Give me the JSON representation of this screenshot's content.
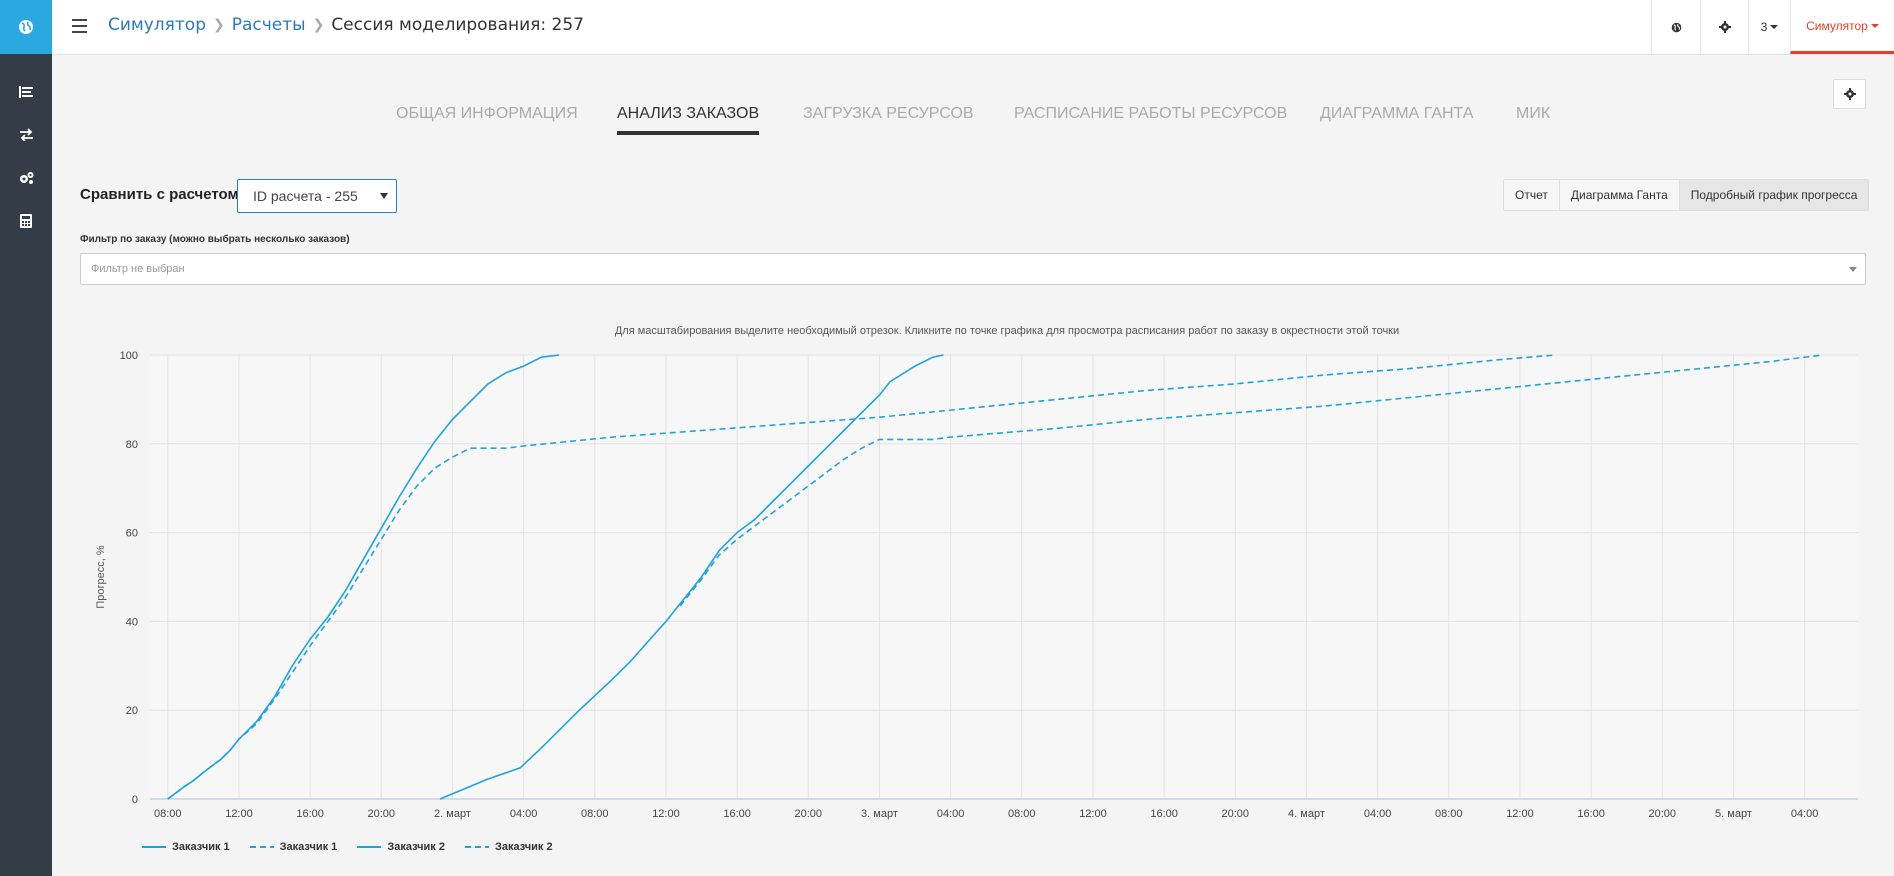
{
  "header": {
    "breadcrumb": [
      "Симулятор",
      "Расчеты"
    ],
    "current_page": "Сессия моделирования: 257",
    "count": "3",
    "user_menu": "Симулятор"
  },
  "colors": {
    "accent": "#2aa8e0",
    "sidebar": "#343d47",
    "danger": "#e0412a",
    "series": "#1fa3de"
  },
  "sidebar": {
    "icons": [
      "globe-icon",
      "list-icon",
      "exchange-icon",
      "gears-icon",
      "calculator-icon"
    ]
  },
  "tabs": [
    "ОБЩАЯ ИНФОРМАЦИЯ",
    "АНАЛИЗ ЗАКАЗОВ",
    "ЗАГРУЗКА РЕСУРСОВ",
    "РАСПИСАНИЕ РАБОТЫ РЕСУРСОВ",
    "ДИАГРАММА ГАНТА",
    "МИК"
  ],
  "active_tab": "АНАЛИЗ ЗАКАЗОВ",
  "compare": {
    "label": "Сравнить с расчетом:",
    "selected": "ID расчета - 255"
  },
  "view_buttons": [
    "Отчет",
    "Диаграмма Ганта",
    "Подробный график прогресса"
  ],
  "filter": {
    "label": "Фильтр по заказу (можно выбрать несколько заказов)",
    "placeholder": "Фильтр не выбран"
  },
  "chart_hint": "Для масштабирования выделите необходимый отрезок. Кликните по точке графика для просмотра расписания работ по заказу в окрестности этой точки",
  "chart_data": {
    "type": "line",
    "ylabel": "Прогресс, %",
    "ylim": [
      0,
      100
    ],
    "yticks": [
      0,
      20,
      40,
      60,
      80,
      100
    ],
    "x_unit": "hours from 1 March 08:00",
    "xlim": [
      -1,
      95
    ],
    "xticks": [
      {
        "x": 0,
        "label": "08:00"
      },
      {
        "x": 4,
        "label": "12:00"
      },
      {
        "x": 8,
        "label": "16:00"
      },
      {
        "x": 12,
        "label": "20:00"
      },
      {
        "x": 16,
        "label": "2. март"
      },
      {
        "x": 20,
        "label": "04:00"
      },
      {
        "x": 24,
        "label": "08:00"
      },
      {
        "x": 28,
        "label": "12:00"
      },
      {
        "x": 32,
        "label": "16:00"
      },
      {
        "x": 36,
        "label": "20:00"
      },
      {
        "x": 40,
        "label": "3. март"
      },
      {
        "x": 44,
        "label": "04:00"
      },
      {
        "x": 48,
        "label": "08:00"
      },
      {
        "x": 52,
        "label": "12:00"
      },
      {
        "x": 56,
        "label": "16:00"
      },
      {
        "x": 60,
        "label": "20:00"
      },
      {
        "x": 64,
        "label": "4. март"
      },
      {
        "x": 68,
        "label": "04:00"
      },
      {
        "x": 72,
        "label": "08:00"
      },
      {
        "x": 76,
        "label": "12:00"
      },
      {
        "x": 80,
        "label": "16:00"
      },
      {
        "x": 84,
        "label": "20:00"
      },
      {
        "x": 88,
        "label": "5. март"
      },
      {
        "x": 92,
        "label": "04:00"
      }
    ],
    "grid": true,
    "legend_position": "bottom-left",
    "series": [
      {
        "name": "Заказчик 1",
        "dash": false,
        "points": [
          [
            0,
            0
          ],
          [
            1,
            3
          ],
          [
            1.4,
            4
          ],
          [
            2,
            6
          ],
          [
            3,
            9
          ],
          [
            3.5,
            11
          ],
          [
            4,
            13.5
          ],
          [
            5,
            17.5
          ],
          [
            6,
            23
          ],
          [
            7,
            30
          ],
          [
            8,
            36
          ],
          [
            9,
            41
          ],
          [
            10,
            47
          ],
          [
            11,
            54
          ],
          [
            12,
            61
          ],
          [
            13,
            68
          ],
          [
            14,
            74.5
          ],
          [
            15,
            80.5
          ],
          [
            16,
            85.5
          ],
          [
            17,
            89.5
          ],
          [
            18,
            93.5
          ],
          [
            19,
            96
          ],
          [
            20,
            97.5
          ],
          [
            21,
            99.5
          ],
          [
            22,
            100
          ]
        ]
      },
      {
        "name": "Заказчик 1",
        "dash": true,
        "points": [
          [
            0,
            0
          ],
          [
            1,
            3
          ],
          [
            1.4,
            4
          ],
          [
            2,
            6
          ],
          [
            3,
            9
          ],
          [
            3.5,
            11
          ],
          [
            4,
            13.5
          ],
          [
            5,
            17
          ],
          [
            6,
            22.5
          ],
          [
            7,
            28.5
          ],
          [
            8,
            34.5
          ],
          [
            9,
            40
          ],
          [
            10,
            45.5
          ],
          [
            11,
            52
          ],
          [
            12,
            58.5
          ],
          [
            13,
            65
          ],
          [
            14,
            70.5
          ],
          [
            15,
            74.5
          ],
          [
            16,
            77
          ],
          [
            17,
            79
          ],
          [
            18,
            79
          ],
          [
            19,
            79
          ],
          [
            20,
            79.5
          ],
          [
            25,
            81.5
          ],
          [
            30,
            83
          ],
          [
            35,
            84.5
          ],
          [
            40,
            86
          ],
          [
            45,
            88
          ],
          [
            50,
            90
          ],
          [
            55,
            92
          ],
          [
            60,
            93.5
          ],
          [
            65,
            95.5
          ],
          [
            70,
            97
          ],
          [
            75,
            99
          ],
          [
            78,
            100
          ]
        ]
      },
      {
        "name": "Заказчик 2",
        "dash": false,
        "points": [
          [
            15.3,
            0
          ],
          [
            16.5,
            2
          ],
          [
            18,
            4.5
          ],
          [
            19.8,
            7
          ],
          [
            21,
            11.5
          ],
          [
            23,
            19.5
          ],
          [
            25,
            27
          ],
          [
            26,
            31
          ],
          [
            27,
            35.5
          ],
          [
            28,
            40
          ],
          [
            28.8,
            44
          ],
          [
            29,
            45
          ],
          [
            30,
            50
          ],
          [
            31,
            56
          ],
          [
            32,
            60
          ],
          [
            33,
            63
          ],
          [
            34,
            67
          ],
          [
            35,
            71
          ],
          [
            36,
            75
          ],
          [
            37,
            79
          ],
          [
            38,
            83
          ],
          [
            39,
            87
          ],
          [
            40,
            91
          ],
          [
            40.6,
            94
          ],
          [
            41,
            95
          ],
          [
            42,
            97.5
          ],
          [
            43,
            99.5
          ],
          [
            43.6,
            100
          ]
        ]
      },
      {
        "name": "Заказчик 2",
        "dash": true,
        "points": [
          [
            28.8,
            43.5
          ],
          [
            29,
            44.5
          ],
          [
            30,
            49.5
          ],
          [
            31,
            55
          ],
          [
            32,
            58.5
          ],
          [
            33,
            61.5
          ],
          [
            34,
            64.5
          ],
          [
            35,
            67.5
          ],
          [
            36,
            70.5
          ],
          [
            37,
            73.5
          ],
          [
            38,
            76.5
          ],
          [
            39,
            79
          ],
          [
            40,
            81
          ],
          [
            41,
            81
          ],
          [
            42,
            81
          ],
          [
            43,
            81
          ],
          [
            44,
            81.5
          ],
          [
            50,
            83.5
          ],
          [
            55,
            85.5
          ],
          [
            60,
            87
          ],
          [
            65,
            88.5
          ],
          [
            70,
            90.5
          ],
          [
            75,
            92.5
          ],
          [
            80,
            94.5
          ],
          [
            85,
            96.5
          ],
          [
            90,
            98.5
          ],
          [
            93,
            100
          ]
        ]
      }
    ]
  },
  "legend": [
    "Заказчик 1",
    "Заказчик 1",
    "Заказчик 2",
    "Заказчик 2"
  ]
}
